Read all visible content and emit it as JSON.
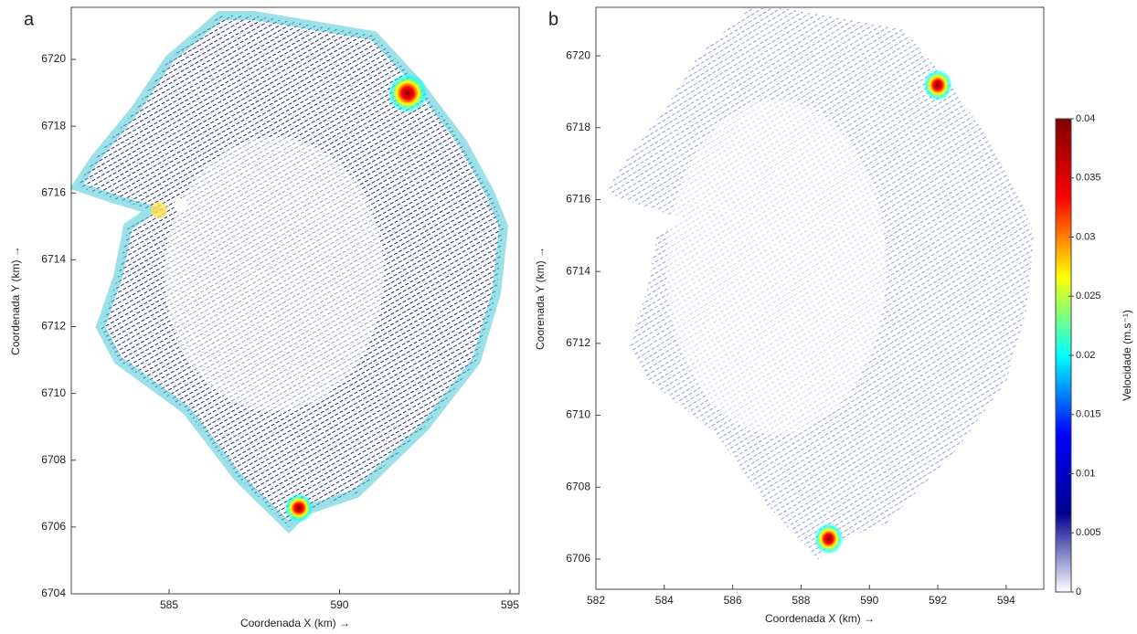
{
  "chart_data": [
    {
      "type": "quiver",
      "panel": "a",
      "x_label": "Coordenada X (km) →",
      "y_label": "Coordenada Y (km) →",
      "xlim": [
        582.13,
        595.27
      ],
      "ylim": [
        6704,
        6721.56
      ],
      "xticks": [
        585,
        590,
        595
      ],
      "yticks": [
        6704,
        6706,
        6708,
        6710,
        6712,
        6714,
        6716,
        6718,
        6720
      ]
    },
    {
      "type": "quiver",
      "panel": "b",
      "x_label": "Coordenada X (km) →",
      "y_label": "Coorenada Y (km) →",
      "xlim": [
        582,
        595.1
      ],
      "ylim": [
        6705.16,
        6721.35
      ],
      "xticks": [
        582,
        584,
        586,
        588,
        590,
        592,
        594
      ],
      "yticks": [
        6706,
        6708,
        6710,
        6712,
        6714,
        6716,
        6718,
        6720
      ],
      "colorbar": {
        "label": "Velocidade (m.s⁻¹)",
        "lim": [
          0,
          0.04
        ],
        "ticks": [
          0,
          0.005,
          0.01,
          0.015,
          0.02,
          0.025,
          0.03,
          0.035,
          0.04
        ],
        "colormap": [
          "#ffffff",
          "#00008f",
          "#0000ff",
          "#00ffff",
          "#ffff00",
          "#ff0000",
          "#800000"
        ]
      }
    }
  ]
}
